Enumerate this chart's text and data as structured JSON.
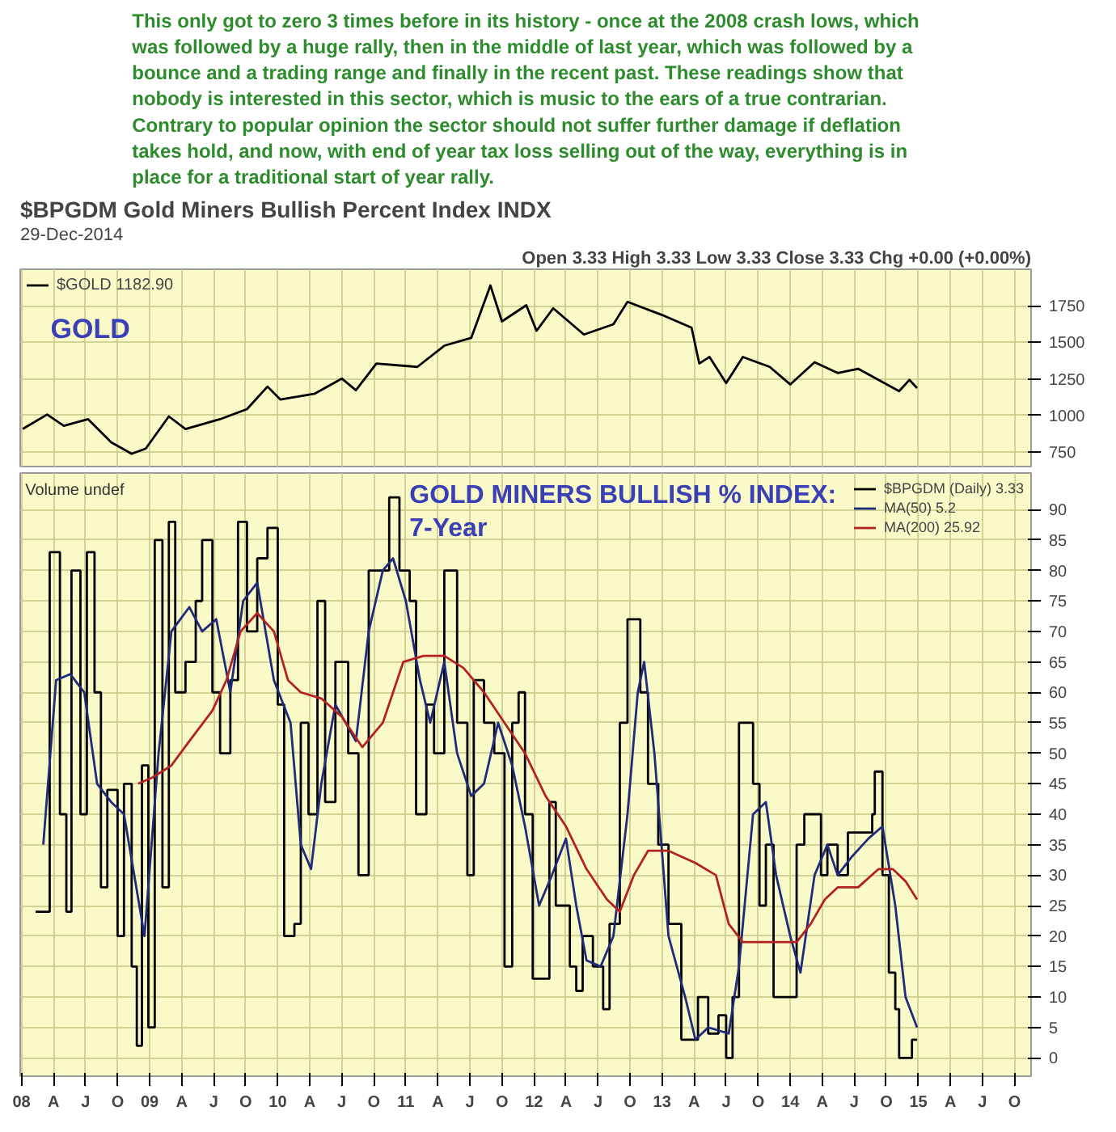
{
  "chart_data": [
    {
      "type": "line",
      "title": "$BPGDM Gold Miners Bullish Percent Index INDX",
      "subtitle": "29-Dec-2014",
      "annotations": [
        "This only got to zero 3 times before in its history - once at the 2008 crash lows, which was followed by a huge rally, then in the middle of last year, which was followed by a bounce and a trading range and finally in the recent past. These readings show that nobody is interested in this sector, which is music to the ears of a true contrarian. Contrary to popular opinion the sector should not suffer further damage if deflation takes hold, and now, with end of year tax loss selling out of the way, everything is in place for a traditional start of year rally.",
        "Open 3.33 High 3.33 Low 3.33 Close 3.33 Chg +0.00 (+0.00%)",
        "GOLD"
      ],
      "series": [
        {
          "name": "$GOLD 1182.90",
          "color": "#000000",
          "x": [
            2008.01,
            2008.2,
            2008.33,
            2008.52,
            2008.7,
            2008.86,
            2008.97,
            2009.15,
            2009.28,
            2009.55,
            2009.76,
            2009.92,
            2010.02,
            2010.29,
            2010.5,
            2010.61,
            2010.77,
            2011.09,
            2011.3,
            2011.51,
            2011.66,
            2011.75,
            2011.94,
            2012.02,
            2012.15,
            2012.39,
            2012.62,
            2012.73,
            2013.0,
            2013.23,
            2013.29,
            2013.37,
            2013.5,
            2013.63,
            2013.84,
            2014.0,
            2014.19,
            2014.37,
            2014.53,
            2014.72,
            2014.85,
            2014.93,
            2014.99
          ],
          "values": [
            907,
            1006,
            929,
            974,
            816,
            737,
            773,
            993,
            907,
            974,
            1043,
            1197,
            1109,
            1149,
            1252,
            1172,
            1355,
            1332,
            1477,
            1530,
            1889,
            1643,
            1754,
            1579,
            1733,
            1553,
            1624,
            1777,
            1687,
            1600,
            1355,
            1400,
            1221,
            1400,
            1332,
            1212,
            1364,
            1290,
            1319,
            1228,
            1166,
            1243,
            1187
          ]
        }
      ],
      "xlim": [
        2007.99,
        2015.88
      ],
      "ylim": [
        650,
        2000
      ],
      "yticks": [
        750,
        1000,
        1250,
        1500,
        1750
      ],
      "xticks": [
        {
          "value": 2008,
          "label": "08"
        },
        {
          "value": 2008.25,
          "label": "A"
        },
        {
          "value": 2008.5,
          "label": "J"
        },
        {
          "value": 2008.75,
          "label": "O"
        },
        {
          "value": 2009,
          "label": "09"
        },
        {
          "value": 2009.25,
          "label": "A"
        },
        {
          "value": 2009.5,
          "label": "J"
        },
        {
          "value": 2009.75,
          "label": "O"
        },
        {
          "value": 2010,
          "label": "10"
        },
        {
          "value": 2010.25,
          "label": "A"
        },
        {
          "value": 2010.5,
          "label": "J"
        },
        {
          "value": 2010.75,
          "label": "O"
        },
        {
          "value": 2011,
          "label": "11"
        },
        {
          "value": 2011.25,
          "label": "A"
        },
        {
          "value": 2011.5,
          "label": "J"
        },
        {
          "value": 2011.75,
          "label": "O"
        },
        {
          "value": 2012,
          "label": "12"
        },
        {
          "value": 2012.25,
          "label": "A"
        },
        {
          "value": 2012.5,
          "label": "J"
        },
        {
          "value": 2012.75,
          "label": "O"
        },
        {
          "value": 2013,
          "label": "13"
        },
        {
          "value": 2013.25,
          "label": "A"
        },
        {
          "value": 2013.5,
          "label": "J"
        },
        {
          "value": 2013.75,
          "label": "O"
        },
        {
          "value": 2014,
          "label": "14"
        },
        {
          "value": 2014.25,
          "label": "A"
        },
        {
          "value": 2014.5,
          "label": "J"
        },
        {
          "value": 2014.75,
          "label": "O"
        },
        {
          "value": 2015,
          "label": "15"
        },
        {
          "value": 2015.25,
          "label": "A"
        },
        {
          "value": 2015.5,
          "label": "J"
        },
        {
          "value": 2015.75,
          "label": "O"
        }
      ],
      "grid": true,
      "legend": "top left",
      "tick_labels": "y"
    },
    {
      "type": "line",
      "annotations": [
        "GOLD MINERS BULLISH % INDEX:\n7-Year",
        "Volume undef"
      ],
      "series": [
        {
          "name": "$BPGDM (Daily) 3.33",
          "type": "step",
          "color": "#000000",
          "x": [
            2008.11,
            2008.22,
            2008.3,
            2008.35,
            2008.39,
            2008.46,
            2008.51,
            2008.57,
            2008.62,
            2008.67,
            2008.75,
            2008.8,
            2008.86,
            2008.9,
            2008.94,
            2008.99,
            2009.04,
            2009.1,
            2009.15,
            2009.2,
            2009.28,
            2009.36,
            2009.41,
            2009.49,
            2009.55,
            2009.63,
            2009.69,
            2009.76,
            2009.84,
            2009.92,
            2010.0,
            2010.05,
            2010.13,
            2010.18,
            2010.24,
            2010.31,
            2010.37,
            2010.45,
            2010.55,
            2010.63,
            2010.71,
            2010.79,
            2010.87,
            2010.95,
            2011.03,
            2011.08,
            2011.16,
            2011.22,
            2011.3,
            2011.4,
            2011.48,
            2011.53,
            2011.61,
            2011.69,
            2011.77,
            2011.83,
            2011.88,
            2011.93,
            2011.99,
            2012.06,
            2012.12,
            2012.17,
            2012.22,
            2012.28,
            2012.33,
            2012.38,
            2012.46,
            2012.54,
            2012.59,
            2012.67,
            2012.73,
            2012.78,
            2012.83,
            2012.89,
            2012.97,
            2013.05,
            2013.15,
            2013.23,
            2013.28,
            2013.36,
            2013.44,
            2013.5,
            2013.55,
            2013.6,
            2013.66,
            2013.71,
            2013.76,
            2013.81,
            2013.87,
            2013.92,
            2013.97,
            2014.05,
            2014.11,
            2014.19,
            2014.24,
            2014.29,
            2014.37,
            2014.45,
            2014.53,
            2014.58,
            2014.64,
            2014.66,
            2014.72,
            2014.77,
            2014.82,
            2014.85,
            2014.9,
            2014.95,
            2014.99
          ],
          "values": [
            24,
            83,
            40,
            24,
            80,
            40,
            83,
            60,
            28,
            44,
            20,
            45,
            15,
            2,
            48,
            5,
            85,
            28,
            88,
            60,
            65,
            75,
            85,
            60,
            50,
            62,
            88,
            70,
            82,
            87,
            58,
            20,
            22,
            55,
            40,
            75,
            42,
            65,
            50,
            30,
            80,
            80,
            92,
            80,
            75,
            40,
            58,
            50,
            80,
            55,
            30,
            62,
            55,
            50,
            15,
            55,
            60,
            40,
            13,
            13,
            42,
            25,
            25,
            15,
            11,
            20,
            15,
            8,
            22,
            55,
            72,
            72,
            60,
            45,
            35,
            22,
            3,
            3,
            10,
            4,
            7,
            0,
            10,
            55,
            55,
            45,
            25,
            35,
            10,
            10,
            10,
            35,
            40,
            40,
            30,
            35,
            30,
            37,
            37,
            37,
            40,
            47,
            30,
            14,
            8,
            0,
            0,
            3,
            3
          ]
        },
        {
          "name": "MA(50) 5.2",
          "color": "#1f2a7a",
          "x": [
            2008.17,
            2008.27,
            2008.38,
            2008.49,
            2008.59,
            2008.7,
            2008.8,
            2008.88,
            2008.96,
            2009.07,
            2009.17,
            2009.31,
            2009.41,
            2009.52,
            2009.63,
            2009.73,
            2009.84,
            2009.97,
            2010.1,
            2010.18,
            2010.26,
            2010.34,
            2010.45,
            2010.61,
            2010.71,
            2010.82,
            2010.9,
            2011.0,
            2011.11,
            2011.19,
            2011.3,
            2011.4,
            2011.51,
            2011.61,
            2011.72,
            2011.83,
            2011.93,
            2012.04,
            2012.14,
            2012.25,
            2012.33,
            2012.41,
            2012.52,
            2012.62,
            2012.73,
            2012.81,
            2012.86,
            2012.94,
            2013.05,
            2013.18,
            2013.26,
            2013.36,
            2013.52,
            2013.6,
            2013.71,
            2013.81,
            2013.89,
            2014.0,
            2014.08,
            2014.19,
            2014.29,
            2014.37,
            2014.48,
            2014.61,
            2014.72,
            2014.82,
            2014.9,
            2014.99
          ],
          "values": [
            35,
            62,
            63,
            60,
            45,
            42,
            40,
            30,
            20,
            50,
            70,
            74,
            70,
            72,
            60,
            75,
            78,
            62,
            55,
            35,
            31,
            45,
            58,
            52,
            70,
            80,
            82,
            75,
            62,
            55,
            65,
            50,
            43,
            45,
            55,
            48,
            38,
            25,
            30,
            36,
            25,
            16,
            15,
            20,
            40,
            60,
            65,
            50,
            20,
            10,
            3,
            5,
            4,
            15,
            40,
            42,
            30,
            20,
            14,
            30,
            35,
            30,
            33,
            36,
            38,
            25,
            10,
            5
          ]
        },
        {
          "name": "MA(200) 25.92",
          "color": "#b22222",
          "x": [
            2008.91,
            2009.02,
            2009.17,
            2009.31,
            2009.49,
            2009.6,
            2009.71,
            2009.84,
            2009.97,
            2010.08,
            2010.18,
            2010.34,
            2010.5,
            2010.66,
            2010.82,
            2010.98,
            2011.14,
            2011.3,
            2011.45,
            2011.61,
            2011.77,
            2011.93,
            2012.09,
            2012.25,
            2012.41,
            2012.57,
            2012.67,
            2012.78,
            2012.89,
            2013.05,
            2013.26,
            2013.42,
            2013.52,
            2013.63,
            2013.84,
            2014.05,
            2014.16,
            2014.27,
            2014.37,
            2014.53,
            2014.69,
            2014.8,
            2014.9,
            2014.99
          ],
          "values": [
            45,
            46,
            48,
            52,
            57,
            62,
            70,
            73,
            70,
            62,
            60,
            59,
            56,
            51,
            55,
            65,
            66,
            66,
            64,
            60,
            55,
            50,
            43,
            38,
            31,
            26,
            24,
            30,
            34,
            34,
            32,
            30,
            22,
            19,
            19,
            19,
            22,
            26,
            28,
            28,
            31,
            31,
            29,
            26
          ]
        }
      ],
      "xlim": [
        2007.99,
        2015.88
      ],
      "ylim": [
        -3,
        96
      ],
      "yticks": [
        0,
        5,
        10,
        15,
        20,
        25,
        30,
        35,
        40,
        45,
        50,
        55,
        60,
        65,
        70,
        75,
        80,
        85,
        90
      ],
      "xticks": [
        {
          "value": 2008,
          "label": "08"
        },
        {
          "value": 2008.25,
          "label": "A"
        },
        {
          "value": 2008.5,
          "label": "J"
        },
        {
          "value": 2008.75,
          "label": "O"
        },
        {
          "value": 2009,
          "label": "09"
        },
        {
          "value": 2009.25,
          "label": "A"
        },
        {
          "value": 2009.5,
          "label": "J"
        },
        {
          "value": 2009.75,
          "label": "O"
        },
        {
          "value": 2010,
          "label": "10"
        },
        {
          "value": 2010.25,
          "label": "A"
        },
        {
          "value": 2010.5,
          "label": "J"
        },
        {
          "value": 2010.75,
          "label": "O"
        },
        {
          "value": 2011,
          "label": "11"
        },
        {
          "value": 2011.25,
          "label": "A"
        },
        {
          "value": 2011.5,
          "label": "J"
        },
        {
          "value": 2011.75,
          "label": "O"
        },
        {
          "value": 2012,
          "label": "12"
        },
        {
          "value": 2012.25,
          "label": "A"
        },
        {
          "value": 2012.5,
          "label": "J"
        },
        {
          "value": 2012.75,
          "label": "O"
        },
        {
          "value": 2013,
          "label": "13"
        },
        {
          "value": 2013.25,
          "label": "A"
        },
        {
          "value": 2013.5,
          "label": "J"
        },
        {
          "value": 2013.75,
          "label": "O"
        },
        {
          "value": 2014,
          "label": "14"
        },
        {
          "value": 2014.25,
          "label": "A"
        },
        {
          "value": 2014.5,
          "label": "J"
        },
        {
          "value": 2014.75,
          "label": "O"
        },
        {
          "value": 2015,
          "label": "15"
        },
        {
          "value": 2015.25,
          "label": "A"
        },
        {
          "value": 2015.5,
          "label": "J"
        },
        {
          "value": 2015.75,
          "label": "O"
        }
      ],
      "grid": true,
      "legend": "top right"
    }
  ]
}
